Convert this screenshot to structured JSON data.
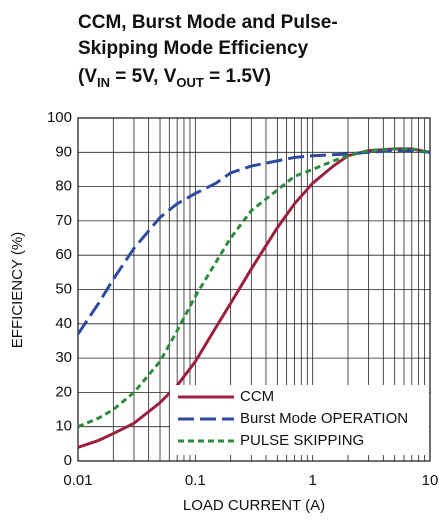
{
  "chart_data": {
    "type": "line",
    "title": [
      "CCM, Burst Mode and Pulse-",
      "Skipping Mode Efficiency"
    ],
    "subtitle_parts": [
      "(V",
      "IN",
      " = 5V, V",
      "OUT",
      " = 1.5V)"
    ],
    "x_label": "LOAD CURRENT (A)",
    "y_label": "EFFICIENCY (%)",
    "log_x": true,
    "grid": true,
    "legend": "lower right",
    "x": [
      0.01,
      0.015,
      0.02,
      0.03,
      0.05,
      0.07,
      0.1,
      0.15,
      0.2,
      0.3,
      0.5,
      0.7,
      1,
      1.5,
      2,
      3,
      5,
      7,
      10
    ],
    "series": [
      {
        "name": "CCM",
        "color": "#9c1f3d",
        "dash": "none",
        "values": [
          4,
          6,
          8,
          11,
          17,
          22,
          29,
          39,
          46,
          56,
          68,
          75,
          81,
          86,
          89,
          90.5,
          91,
          91,
          90
        ]
      },
      {
        "name": "Burst Mode OPERATION",
        "color": "#2e4a9e",
        "dash": "16 6",
        "values": [
          37,
          46,
          53,
          62,
          71,
          75,
          78,
          81,
          84,
          86,
          87.5,
          88.5,
          89,
          89.3,
          89.5,
          90,
          90.5,
          90.5,
          90
        ]
      },
      {
        "name": "PULSE SKIPPING",
        "color": "#2e8b3e",
        "dash": "6 4",
        "values": [
          10,
          12.5,
          15,
          20,
          29,
          38,
          48,
          58,
          65,
          73,
          79,
          83,
          85,
          87.5,
          89,
          90.5,
          91,
          91,
          90
        ]
      }
    ],
    "xlim": [
      0.01,
      10
    ],
    "xticks": [
      0.01,
      0.1,
      1,
      10
    ],
    "xminorticks": [
      0.02,
      0.03,
      0.04,
      0.05,
      0.06,
      0.07,
      0.08,
      0.09,
      0.2,
      0.3,
      0.4,
      0.5,
      0.6,
      0.7,
      0.8,
      0.9,
      2,
      3,
      4,
      5,
      6,
      7,
      8,
      9
    ],
    "ylim": [
      0,
      100
    ],
    "yticks": [
      0,
      10,
      20,
      30,
      40,
      50,
      60,
      70,
      80,
      90,
      100
    ]
  }
}
